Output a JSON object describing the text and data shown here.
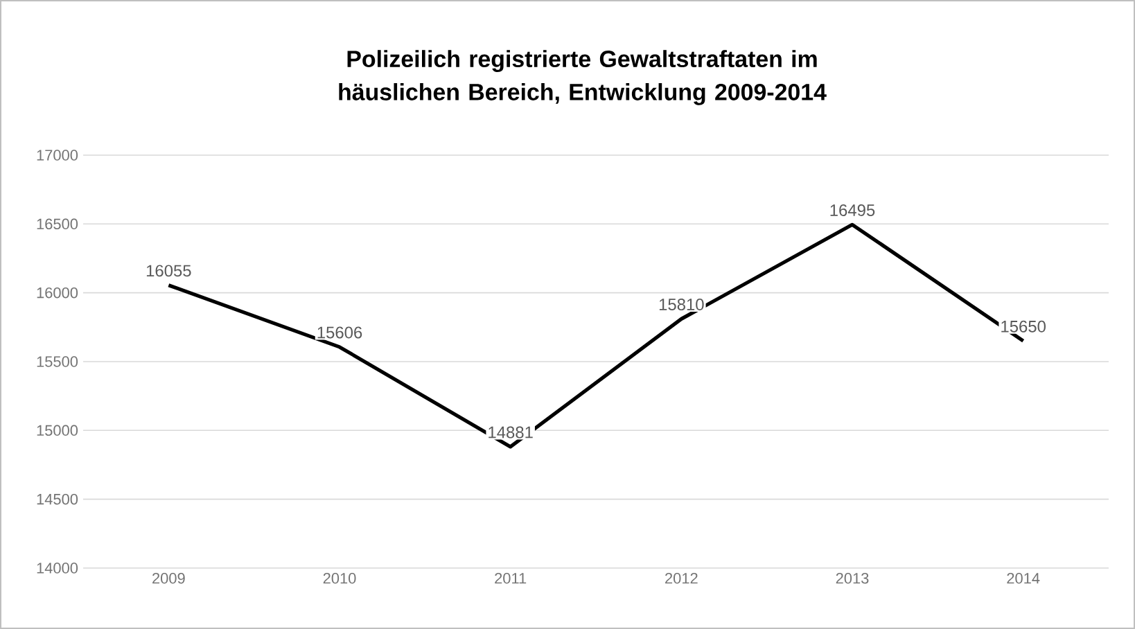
{
  "chart_data": {
    "type": "line",
    "title": "Polizeilich registrierte Gewaltstraftaten im häuslichen Bereich, Entwicklung 2009-2014",
    "categories": [
      "2009",
      "2010",
      "2011",
      "2012",
      "2013",
      "2014"
    ],
    "values": [
      16055,
      15606,
      14881,
      15810,
      16495,
      15650
    ],
    "color": "#000000",
    "ylim": [
      14000,
      17000
    ],
    "yticks": [
      14000,
      14500,
      15000,
      15500,
      16000,
      16500,
      17000
    ],
    "grid": "y",
    "data_labels": true,
    "marker": "none",
    "line_style": "solid"
  }
}
